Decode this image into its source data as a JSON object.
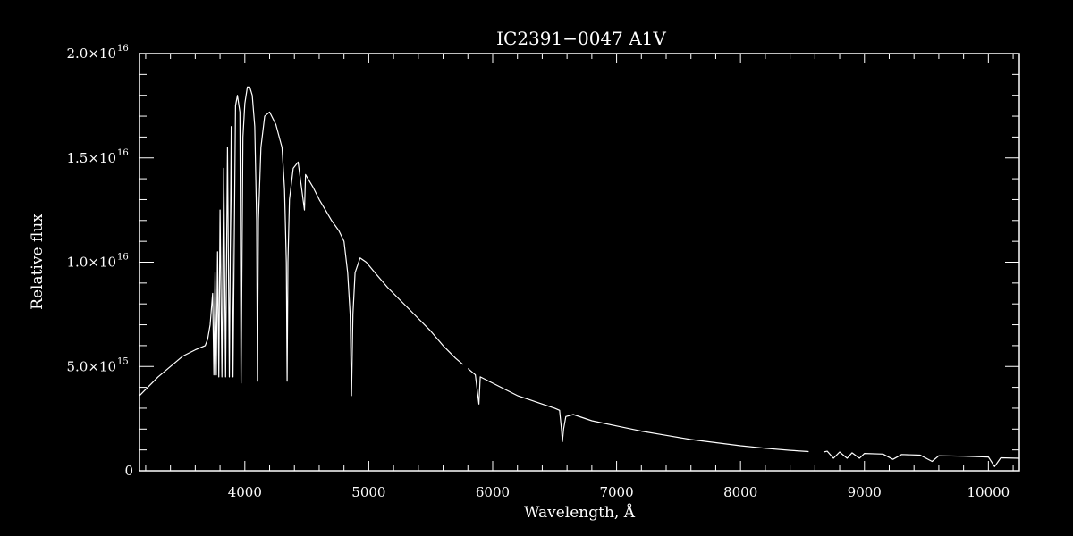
{
  "chart_data": {
    "type": "line",
    "title": "IC2391−0047  A1V",
    "xlabel": "Wavelength, Å",
    "ylabel": "Relative flux",
    "xlim": [
      3150,
      10250
    ],
    "ylim": [
      0,
      2e+16
    ],
    "x_ticks": [
      {
        "value": 4000,
        "label": "4000"
      },
      {
        "value": 5000,
        "label": "5000"
      },
      {
        "value": 6000,
        "label": "6000"
      },
      {
        "value": 7000,
        "label": "7000"
      },
      {
        "value": 8000,
        "label": "8000"
      },
      {
        "value": 9000,
        "label": "9000"
      },
      {
        "value": 10000,
        "label": "10000"
      }
    ],
    "x_minor_step": 200,
    "y_ticks": [
      {
        "value": 0,
        "mantissa": "0",
        "exponent": ""
      },
      {
        "value": 5000000000000000.0,
        "mantissa": "5.0×10",
        "exponent": "15"
      },
      {
        "value": 1e+16,
        "mantissa": "1.0×10",
        "exponent": "16"
      },
      {
        "value": 1.5e+16,
        "mantissa": "1.5×10",
        "exponent": "16"
      },
      {
        "value": 2e+16,
        "mantissa": "2.0×10",
        "exponent": "16"
      }
    ],
    "y_minor_step": 1000000000000000.0,
    "grid": false,
    "line_color": "#ffffff",
    "background": "#000000",
    "gaps": [
      [
        5760,
        5800
      ],
      [
        8550,
        8670
      ]
    ],
    "series": [
      {
        "segments": [
          [
            [
              3150,
              3600000000000000.0
            ],
            [
              3200,
              3900000000000000.0
            ],
            [
              3300,
              4500000000000000.0
            ],
            [
              3400,
              5000000000000000.0
            ],
            [
              3500,
              5500000000000000.0
            ],
            [
              3600,
              5800000000000000.0
            ],
            [
              3680,
              6000000000000000.0
            ],
            [
              3700,
              6300000000000000.0
            ],
            [
              3720,
              7000000000000000.0
            ],
            [
              3740,
              8500000000000000.0
            ],
            [
              3750,
              4600000000000000.0
            ],
            [
              3760,
              9500000000000000.0
            ],
            [
              3770,
              4600000000000000.0
            ],
            [
              3780,
              1.05e+16
            ],
            [
              3790,
              4500000000000000.0
            ],
            [
              3800,
              1.25e+16
            ],
            [
              3815,
              4500000000000000.0
            ],
            [
              3830,
              1.45e+16
            ],
            [
              3845,
              4500000000000000.0
            ],
            [
              3860,
              1.55e+16
            ],
            [
              3875,
              4500000000000000.0
            ],
            [
              3890,
              1.65e+16
            ],
            [
              3905,
              4500000000000000.0
            ],
            [
              3925,
              1.75e+16
            ],
            [
              3940,
              1.8e+16
            ],
            [
              3960,
              1.72e+16
            ],
            [
              3970,
              4200000000000000.0
            ],
            [
              3985,
              1.6e+16
            ],
            [
              4000,
              1.76e+16
            ],
            [
              4020,
              1.84e+16
            ],
            [
              4040,
              1.84e+16
            ],
            [
              4060,
              1.8e+16
            ],
            [
              4080,
              1.65e+16
            ],
            [
              4095,
              1.2e+16
            ],
            [
              4102,
              4300000000000000.0
            ],
            [
              4110,
              1.2e+16
            ],
            [
              4130,
              1.55e+16
            ],
            [
              4160,
              1.7e+16
            ],
            [
              4200,
              1.72e+16
            ],
            [
              4250,
              1.66e+16
            ],
            [
              4300,
              1.55e+16
            ],
            [
              4320,
              1.35e+16
            ],
            [
              4335,
              1e+16
            ],
            [
              4341,
              4300000000000000.0
            ],
            [
              4348,
              1e+16
            ],
            [
              4360,
              1.3e+16
            ],
            [
              4390,
              1.45e+16
            ],
            [
              4430,
              1.48e+16
            ],
            [
              4481,
              1.25e+16
            ],
            [
              4490,
              1.42e+16
            ],
            [
              4550,
              1.36e+16
            ],
            [
              4600,
              1.3e+16
            ],
            [
              4650,
              1.25e+16
            ],
            [
              4700,
              1.2e+16
            ],
            [
              4760,
              1.15e+16
            ],
            [
              4800,
              1.1e+16
            ],
            [
              4830,
              9500000000000000.0
            ],
            [
              4850,
              7500000000000000.0
            ],
            [
              4861,
              3600000000000000.0
            ],
            [
              4872,
              7500000000000000.0
            ],
            [
              4890,
              9500000000000000.0
            ],
            [
              4930,
              1.02e+16
            ],
            [
              4980,
              1e+16
            ],
            [
              5050,
              9500000000000000.0
            ],
            [
              5150,
              8800000000000000.0
            ],
            [
              5250,
              8200000000000000.0
            ],
            [
              5300,
              7900000000000000.0
            ],
            [
              5400,
              7300000000000000.0
            ],
            [
              5500,
              6700000000000000.0
            ],
            [
              5600,
              6000000000000000.0
            ],
            [
              5700,
              5400000000000000.0
            ],
            [
              5760,
              5100000000000000.0
            ]
          ],
          [
            [
              5800,
              4900000000000000.0
            ],
            [
              5860,
              4600000000000000.0
            ],
            [
              5889,
              3200000000000000.0
            ],
            [
              5900,
              4500000000000000.0
            ],
            [
              6000,
              4200000000000000.0
            ],
            [
              6100,
              3900000000000000.0
            ],
            [
              6200,
              3600000000000000.0
            ],
            [
              6300,
              3400000000000000.0
            ],
            [
              6400,
              3200000000000000.0
            ],
            [
              6500,
              3000000000000000.0
            ],
            [
              6540,
              2900000000000000.0
            ],
            [
              6555,
              2000000000000000.0
            ],
            [
              6563,
              1400000000000000.0
            ],
            [
              6572,
              2000000000000000.0
            ],
            [
              6590,
              2600000000000000.0
            ],
            [
              6650,
              2700000000000000.0
            ],
            [
              6800,
              2400000000000000.0
            ],
            [
              7000,
              2150000000000000.0
            ],
            [
              7200,
              1900000000000000.0
            ],
            [
              7400,
              1700000000000000.0
            ],
            [
              7600,
              1500000000000000.0
            ],
            [
              7800,
              1350000000000000.0
            ],
            [
              8000,
              1200000000000000.0
            ],
            [
              8200,
              1080000000000000.0
            ],
            [
              8400,
              980000000000000.0
            ],
            [
              8550,
              920000000000000.0
            ]
          ],
          [
            [
              8670,
              900000000000000.0
            ],
            [
              8700,
              940000000000000.0
            ],
            [
              8750,
              600000000000000.0
            ],
            [
              8800,
              900000000000000.0
            ],
            [
              8860,
              600000000000000.0
            ],
            [
              8900,
              860000000000000.0
            ],
            [
              8960,
              600000000000000.0
            ],
            [
              9000,
              830000000000000.0
            ],
            [
              9150,
              800000000000000.0
            ],
            [
              9230,
              550000000000000.0
            ],
            [
              9300,
              780000000000000.0
            ],
            [
              9450,
              750000000000000.0
            ],
            [
              9546,
              450000000000000.0
            ],
            [
              9600,
              720000000000000.0
            ],
            [
              9800,
              700000000000000.0
            ],
            [
              10000,
              660000000000000.0
            ],
            [
              10050,
              200000000000000.0
            ],
            [
              10100,
              620000000000000.0
            ],
            [
              10250,
              600000000000000.0
            ]
          ]
        ]
      }
    ]
  }
}
